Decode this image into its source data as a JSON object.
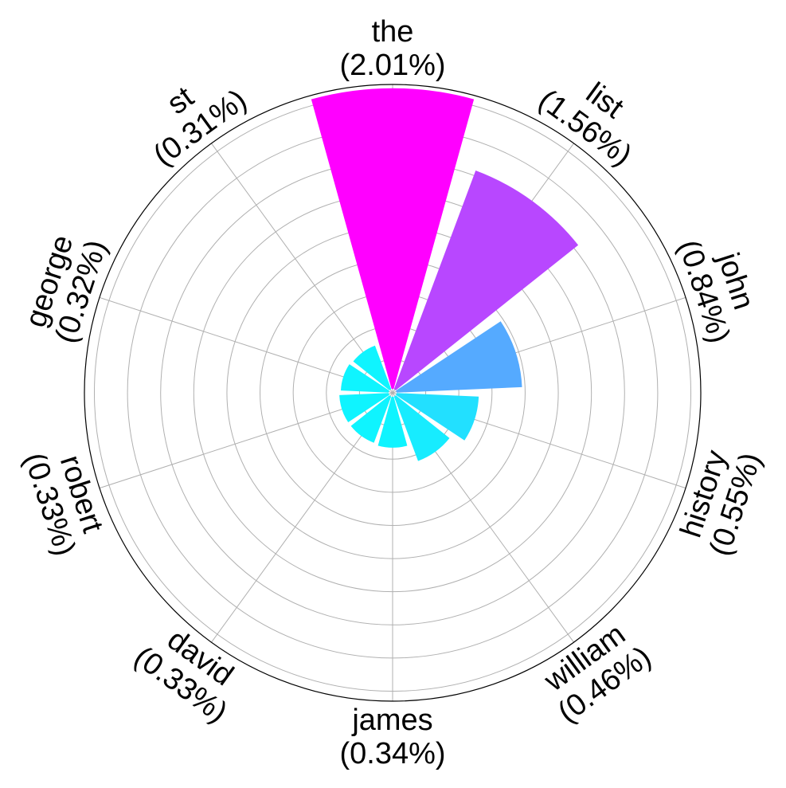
{
  "chart_data": {
    "type": "polar-bar",
    "grid": true,
    "categories": [
      "the",
      "list",
      "john",
      "history",
      "william",
      "james",
      "david",
      "robert",
      "george",
      "st"
    ],
    "percent_labels": [
      "(2.01%)",
      "(1.56%)",
      "(0.84%)",
      "(0.55%)",
      "(0.46%)",
      "(0.34%)",
      "(0.33%)",
      "(0.33%)",
      "(0.32%)",
      "(0.31%)"
    ],
    "values": [
      2.01,
      1.56,
      0.84,
      0.55,
      0.46,
      0.34,
      0.33,
      0.33,
      0.32,
      0.31
    ],
    "colors": [
      "#ff00ff",
      "#b847ff",
      "#55aaff",
      "#22e0ff",
      "#17ecff",
      "#0ff4ff",
      "#0ff4ff",
      "#0ff4ff",
      "#0ff4ff",
      "#0ff4ff"
    ],
    "grid_color": "#b0b0b0"
  }
}
